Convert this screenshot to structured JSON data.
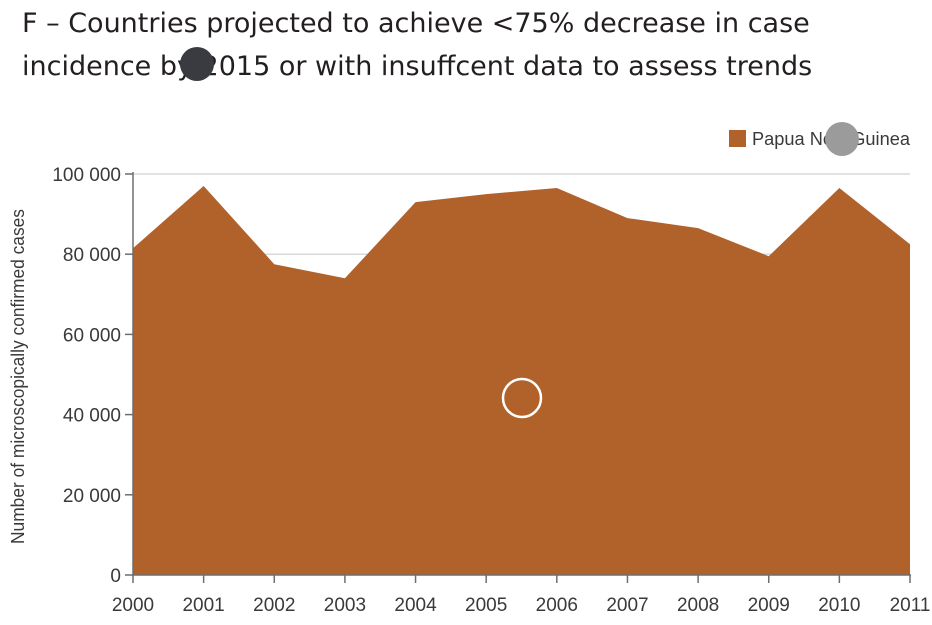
{
  "title": {
    "line1": "F – Countries projected to achieve <75% decrease in case",
    "line2": "incidence by 2015 or with insuffcent data to assess trends"
  },
  "colors": {
    "area": "#b0622a",
    "grid": "#d9d9d9",
    "axis": "#6d6e71",
    "marker_dark": "#3a3b40",
    "marker_grey": "#9b9b9b"
  },
  "chart_data": {
    "type": "area",
    "x": [
      "2000",
      "2001",
      "2002",
      "2003",
      "2004",
      "2005",
      "2006",
      "2007",
      "2008",
      "2009",
      "2010",
      "2011"
    ],
    "series": [
      {
        "name": "Papua New Guinea",
        "values": [
          81500,
          97000,
          77500,
          74000,
          93000,
          95000,
          96500,
          89000,
          86500,
          79500,
          96500,
          82500
        ]
      }
    ],
    "ylabel": "Number of microscopically confirmed cases",
    "xlabel": "",
    "ylim": [
      0,
      100000
    ],
    "yticks": [
      0,
      20000,
      40000,
      60000,
      80000,
      100000
    ],
    "ytick_labels": [
      "0",
      "20 000",
      "40 000",
      "60 000",
      "80 000",
      "100 000"
    ],
    "grid": true,
    "legend": "top-right"
  }
}
